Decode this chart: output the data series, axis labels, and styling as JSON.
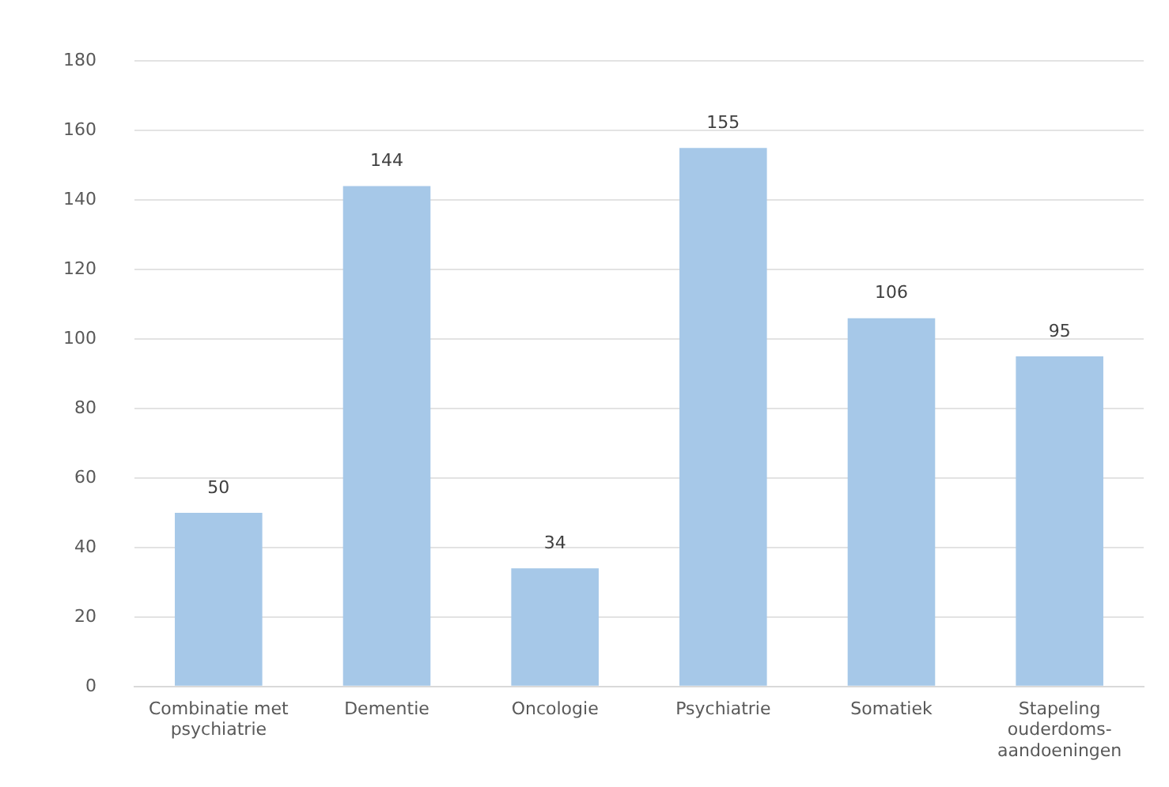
{
  "chart_data": {
    "type": "bar",
    "categories": [
      "Combinatie met\npsychiatrie",
      "Dementie",
      "Oncologie",
      "Psychiatrie",
      "Somatiek",
      "Stapeling\nouderdoms-\naandoeningen"
    ],
    "values": [
      50,
      144,
      34,
      155,
      106,
      95
    ],
    "color": "#a6c8e8",
    "ylim": [
      0,
      180
    ],
    "yticks": [
      0,
      20,
      40,
      60,
      80,
      100,
      120,
      140,
      160,
      180
    ],
    "grid": "y",
    "data_labels": true,
    "legend": false
  }
}
